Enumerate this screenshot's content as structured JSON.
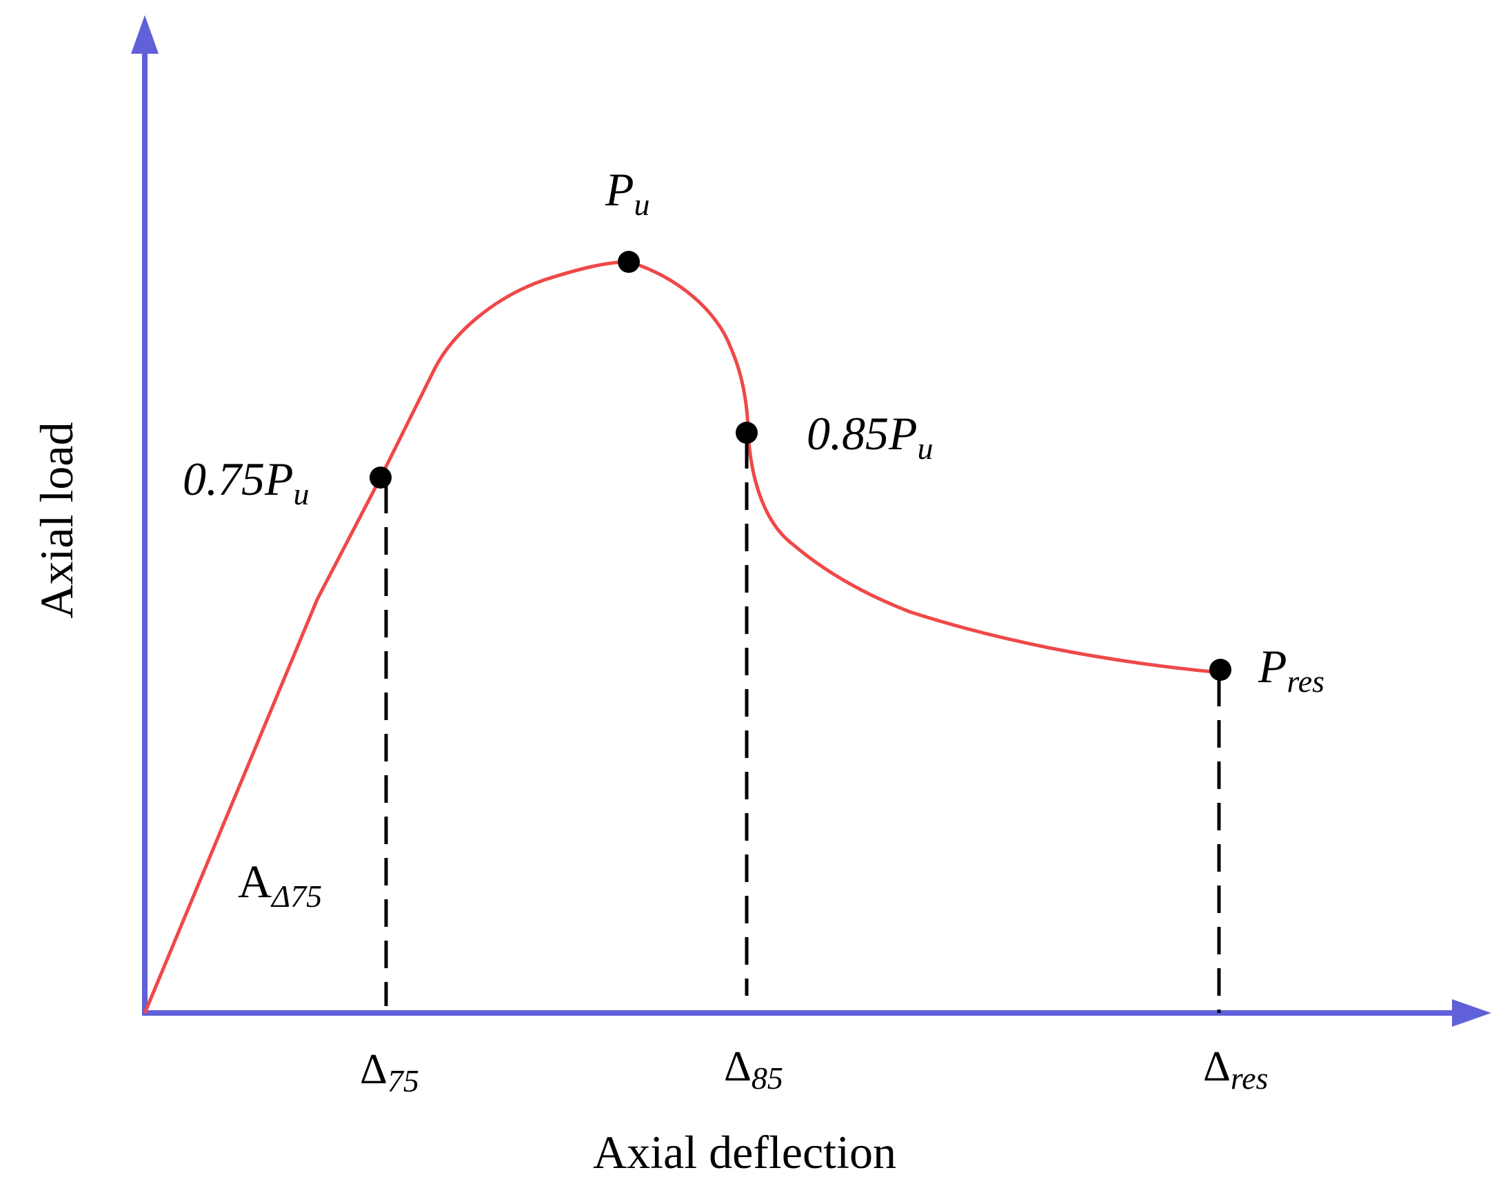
{
  "diagram": {
    "axis_color": "#6060d8",
    "curve_color": "#f04848",
    "marker_color": "#000000",
    "x_axis_label": "Axial deflection",
    "y_axis_label": "Axial load",
    "points": [
      {
        "id": "p75",
        "label_main": "0.75P",
        "label_sub": "u"
      },
      {
        "id": "pu",
        "label_main": "P",
        "label_sub": "u"
      },
      {
        "id": "p85",
        "label_main": "0.85P",
        "label_sub": "u"
      },
      {
        "id": "pres",
        "label_main": "P",
        "label_sub": "res"
      }
    ],
    "deflection_ticks": [
      {
        "id": "d75",
        "symbol": "Δ",
        "sub": "75"
      },
      {
        "id": "d85",
        "symbol": "Δ",
        "sub": "85"
      },
      {
        "id": "dres",
        "symbol": "Δ",
        "sub": "res"
      }
    ],
    "area_label": {
      "main": "A",
      "sub": "Δ75"
    }
  }
}
